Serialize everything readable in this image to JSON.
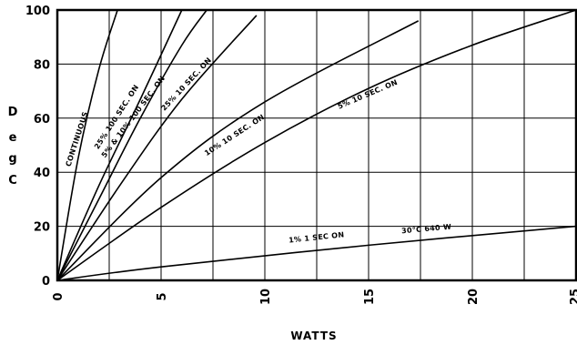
{
  "chart_data": {
    "type": "line",
    "xlabel": "WATTS",
    "ylabel": "D e g C",
    "xlim": [
      0,
      25
    ],
    "ylim": [
      0,
      100
    ],
    "x_ticks": [
      0,
      5,
      10,
      15,
      20,
      25
    ],
    "y_ticks": [
      0,
      20,
      40,
      60,
      80,
      100
    ],
    "grid": true,
    "series": [
      {
        "name": "CONTINUOUS",
        "points": [
          [
            0,
            0
          ],
          [
            1,
            45
          ],
          [
            2,
            78
          ],
          [
            2.9,
            100
          ]
        ]
      },
      {
        "name": "25% 100 SEC. ON",
        "points": [
          [
            0,
            0
          ],
          [
            2,
            35
          ],
          [
            4,
            67
          ],
          [
            6,
            100
          ]
        ]
      },
      {
        "name": "5% & 10% 100 SEC. ON",
        "points": [
          [
            0,
            0
          ],
          [
            2,
            30
          ],
          [
            4,
            60
          ],
          [
            6,
            87
          ],
          [
            7.2,
            100
          ]
        ]
      },
      {
        "name": "25% 10 SEC. ON",
        "points": [
          [
            0,
            0
          ],
          [
            3,
            35
          ],
          [
            6,
            67
          ],
          [
            9.6,
            98
          ]
        ]
      },
      {
        "name": "10% 10 SEC. ON",
        "points": [
          [
            0,
            0
          ],
          [
            5,
            38
          ],
          [
            10,
            66
          ],
          [
            17.4,
            96
          ]
        ]
      },
      {
        "name": "5% 10 SEC. ON",
        "points": [
          [
            0,
            0
          ],
          [
            5,
            27
          ],
          [
            10,
            51
          ],
          [
            15,
            71
          ],
          [
            20,
            87
          ],
          [
            25,
            100
          ]
        ]
      },
      {
        "name": "1% 1 SEC ON",
        "points": [
          [
            0,
            0
          ],
          [
            5,
            5
          ],
          [
            15,
            13
          ],
          [
            25,
            20
          ]
        ]
      }
    ],
    "annotations": [
      "30°C 640 W"
    ]
  }
}
